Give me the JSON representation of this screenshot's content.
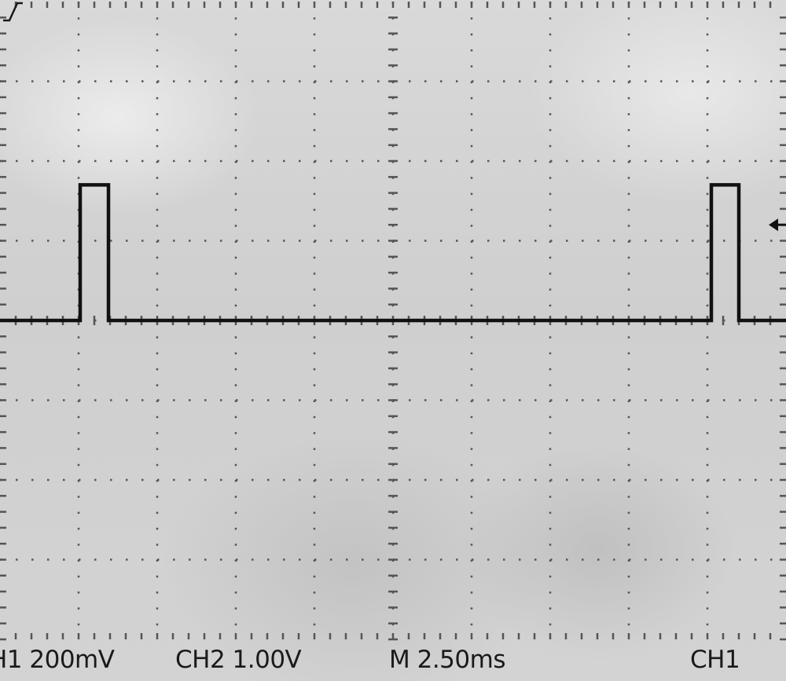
{
  "chart_data": {
    "type": "line",
    "title": "",
    "xlabel": "",
    "ylabel": "",
    "grid": true,
    "x_divisions": 10,
    "y_divisions": 8,
    "xlim": [
      0,
      10
    ],
    "ylim": [
      -4,
      4
    ],
    "series": [
      {
        "x": [
          0,
          1.02,
          1.02,
          1.38,
          1.38,
          9.05,
          9.05,
          9.4,
          9.4,
          10
        ],
        "y": [
          0,
          0,
          1.7,
          1.7,
          0,
          0,
          1.7,
          1.7,
          0,
          0
        ]
      }
    ],
    "trigger_level_div": 1.2
  },
  "status_bar": {
    "ch1": "H1  200mV",
    "ch2": "CH2  1.00V",
    "timebase": "M 2.50ms",
    "trigger_source": "CH1",
    "trigger_slope_icon": "rising-edge-icon"
  },
  "colors": {
    "trace": "#111111",
    "grid": "#555555",
    "screen": "#d4d4d4",
    "text": "#1a1a1a"
  }
}
